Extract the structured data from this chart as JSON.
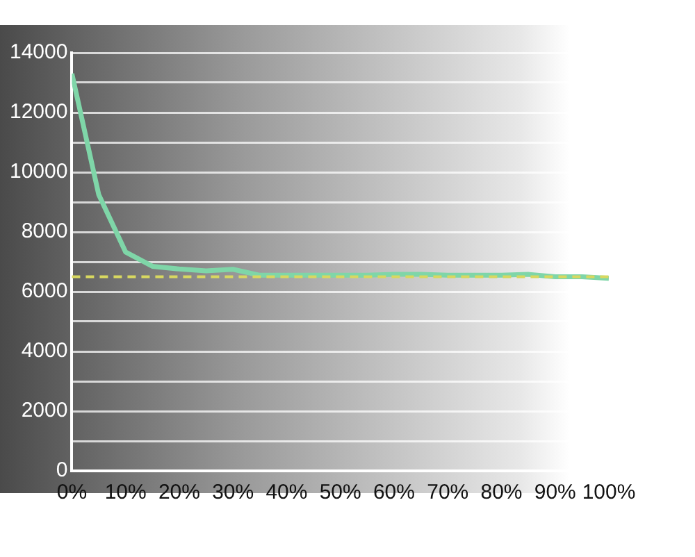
{
  "chart_data": {
    "type": "line",
    "x": [
      0,
      5,
      10,
      15,
      20,
      25,
      30,
      35,
      40,
      45,
      50,
      55,
      60,
      65,
      70,
      75,
      80,
      85,
      90,
      95,
      100
    ],
    "series": [
      {
        "color": "#7fd6a8",
        "values": [
          13300,
          9250,
          7330,
          6850,
          6760,
          6700,
          6750,
          6550,
          6550,
          6550,
          6550,
          6550,
          6580,
          6580,
          6550,
          6550,
          6550,
          6580,
          6500,
          6500,
          6450
        ]
      }
    ],
    "xlim": [
      0,
      100
    ],
    "xticks": [
      {
        "value": 0,
        "label": "0%"
      },
      {
        "value": 10,
        "label": "10%"
      },
      {
        "value": 20,
        "label": "20%"
      },
      {
        "value": 30,
        "label": "30%"
      },
      {
        "value": 40,
        "label": "40%"
      },
      {
        "value": 50,
        "label": "50%"
      },
      {
        "value": 60,
        "label": "60%"
      },
      {
        "value": 70,
        "label": "70%"
      },
      {
        "value": 80,
        "label": "80%"
      },
      {
        "value": 90,
        "label": "90%"
      },
      {
        "value": 100,
        "label": "100%"
      }
    ],
    "ylim": [
      0,
      14000
    ],
    "yticks": [
      0,
      {
        "value": 1000,
        "label": null
      },
      2000,
      {
        "value": 3000,
        "label": null
      },
      4000,
      {
        "value": 5000,
        "label": null
      },
      6000,
      {
        "value": 7000,
        "label": null
      },
      8000,
      {
        "value": 9000,
        "label": null
      },
      10000,
      {
        "value": 11000,
        "label": null
      },
      12000,
      {
        "value": 13000,
        "label": null
      },
      14000
    ],
    "ref_lines": [
      {
        "axis": "y",
        "value": 6500,
        "color": "#d8d860",
        "line_style": "dashed"
      }
    ],
    "grid": "y",
    "marker": "none",
    "line_style": "solid",
    "legend": false
  }
}
